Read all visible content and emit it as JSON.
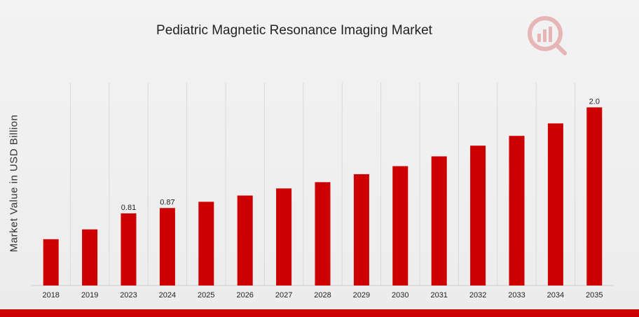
{
  "colors": {
    "bar": "#cc0000",
    "grid": "#d9d9d9",
    "accent": "#cc0000"
  },
  "logo": {
    "icon": "brand-logo-icon"
  },
  "chart_data": {
    "type": "bar",
    "title": "Pediatric Magnetic Resonance Imaging Market",
    "xlabel": "",
    "ylabel": "Market Value in USD Billion",
    "categories": [
      "2018",
      "2019",
      "2023",
      "2024",
      "2025",
      "2026",
      "2027",
      "2028",
      "2029",
      "2030",
      "2031",
      "2032",
      "2033",
      "2034",
      "2035"
    ],
    "values": [
      0.52,
      0.63,
      0.81,
      0.87,
      0.94,
      1.01,
      1.09,
      1.16,
      1.25,
      1.34,
      1.45,
      1.57,
      1.68,
      1.82,
      2.0
    ],
    "data_labels": [
      "",
      "",
      "0.81",
      "0.87",
      "",
      "",
      "",
      "",
      "",
      "",
      "",
      "",
      "",
      "",
      "2.0"
    ],
    "ylim": [
      0,
      2.2
    ],
    "grid": "vertical",
    "legend": "none"
  }
}
